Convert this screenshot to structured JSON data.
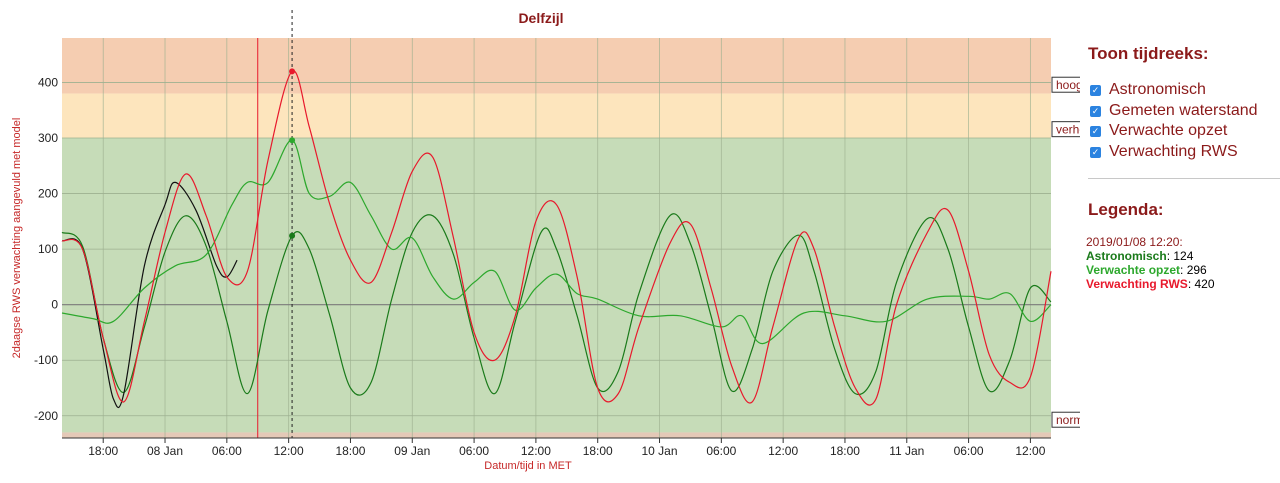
{
  "chart_data": {
    "type": "line",
    "title": "Delfzijl",
    "xlabel": "Datum/tijd in MET",
    "ylabel": "2daagse RWS verwachting aangevuld met model",
    "ylim": [
      -240,
      480
    ],
    "yticks": [
      400,
      300,
      200,
      100,
      0,
      -100,
      -200
    ],
    "xrange": [
      "2019-01-07 14:00",
      "2019-01-11 14:00"
    ],
    "xticks": [
      {
        "t": "2019-01-07 18:00",
        "label": "18:00"
      },
      {
        "t": "2019-01-08 00:00",
        "label": "08 Jan"
      },
      {
        "t": "2019-01-08 06:00",
        "label": "06:00"
      },
      {
        "t": "2019-01-08 12:00",
        "label": "12:00"
      },
      {
        "t": "2019-01-08 18:00",
        "label": "18:00"
      },
      {
        "t": "2019-01-09 00:00",
        "label": "09 Jan"
      },
      {
        "t": "2019-01-09 06:00",
        "label": "06:00"
      },
      {
        "t": "2019-01-09 12:00",
        "label": "12:00"
      },
      {
        "t": "2019-01-09 18:00",
        "label": "18:00"
      },
      {
        "t": "2019-01-10 00:00",
        "label": "10 Jan"
      },
      {
        "t": "2019-01-10 06:00",
        "label": "06:00"
      },
      {
        "t": "2019-01-10 12:00",
        "label": "12:00"
      },
      {
        "t": "2019-01-10 18:00",
        "label": "18:00"
      },
      {
        "t": "2019-01-11 00:00",
        "label": "11 Jan"
      },
      {
        "t": "2019-01-11 06:00",
        "label": "06:00"
      },
      {
        "t": "2019-01-11 12:00",
        "label": "12:00"
      }
    ],
    "bands": [
      {
        "from": 380,
        "to": 480,
        "color": "#f5cdb1"
      },
      {
        "from": 300,
        "to": 380,
        "color": "#fde5bd"
      },
      {
        "from": -230,
        "to": 300,
        "color": "#c6dcb8"
      },
      {
        "from": -240,
        "to": -230,
        "color": "#e4c9b7"
      }
    ],
    "level_labels": [
      {
        "text": "hoog",
        "value": 395
      },
      {
        "text": "verhoogd",
        "value": 315
      },
      {
        "text": "normaal",
        "value": -208
      }
    ],
    "now_marker": "2019-01-08 09:00",
    "cursor": "2019-01-08 12:20",
    "series": [
      {
        "name": "Astronomisch",
        "color": "#1a7a1a",
        "x": [
          "2019-01-07 14:00",
          "2019-01-07 16:00",
          "2019-01-07 18:00",
          "2019-01-07 20:00",
          "2019-01-07 22:00",
          "2019-01-08 00:00",
          "2019-01-08 02:00",
          "2019-01-08 04:00",
          "2019-01-08 06:00",
          "2019-01-08 08:00",
          "2019-01-08 10:00",
          "2019-01-08 12:20",
          "2019-01-08 14:00",
          "2019-01-08 16:00",
          "2019-01-08 18:00",
          "2019-01-08 20:00",
          "2019-01-08 22:00",
          "2019-01-09 00:00",
          "2019-01-09 02:00",
          "2019-01-09 04:00",
          "2019-01-09 06:00",
          "2019-01-09 08:00",
          "2019-01-09 10:00",
          "2019-01-09 12:30",
          "2019-01-09 14:00",
          "2019-01-09 16:00",
          "2019-01-09 18:00",
          "2019-01-09 20:00",
          "2019-01-09 22:00",
          "2019-01-10 01:00",
          "2019-01-10 03:00",
          "2019-01-10 05:00",
          "2019-01-10 07:00",
          "2019-01-10 09:00",
          "2019-01-10 11:00",
          "2019-01-10 13:30",
          "2019-01-10 15:00",
          "2019-01-10 17:00",
          "2019-01-10 19:00",
          "2019-01-10 21:00",
          "2019-01-10 23:00",
          "2019-01-11 02:00",
          "2019-01-11 04:00",
          "2019-01-11 06:00",
          "2019-01-11 08:00",
          "2019-01-11 10:00",
          "2019-01-11 12:00",
          "2019-01-11 14:00"
        ],
        "values": [
          130,
          105,
          -60,
          -158,
          -40,
          95,
          160,
          105,
          -30,
          -160,
          -10,
          124,
          100,
          -20,
          -150,
          -140,
          10,
          130,
          160,
          90,
          -60,
          -160,
          -30,
          130,
          100,
          -20,
          -150,
          -120,
          20,
          160,
          110,
          -20,
          -155,
          -80,
          60,
          125,
          60,
          -80,
          -160,
          -120,
          40,
          155,
          100,
          -40,
          -155,
          -100,
          30,
          5
        ]
      },
      {
        "name": "Gemeten waterstand",
        "color": "#111111",
        "x": [
          "2019-01-07 14:00",
          "2019-01-07 16:00",
          "2019-01-07 18:00",
          "2019-01-07 19:00",
          "2019-01-07 20:00",
          "2019-01-07 22:00",
          "2019-01-08 00:00",
          "2019-01-08 01:00",
          "2019-01-08 03:00",
          "2019-01-08 05:00",
          "2019-01-08 06:00",
          "2019-01-08 07:00"
        ],
        "values": [
          115,
          100,
          -80,
          -170,
          -160,
          70,
          180,
          220,
          170,
          70,
          50,
          80
        ]
      },
      {
        "name": "Verwachte opzet",
        "color": "#2da82d",
        "x": [
          "2019-01-07 14:00",
          "2019-01-07 17:00",
          "2019-01-07 19:00",
          "2019-01-07 22:00",
          "2019-01-08 01:00",
          "2019-01-08 04:00",
          "2019-01-08 06:30",
          "2019-01-08 08:00",
          "2019-01-08 10:00",
          "2019-01-08 12:20",
          "2019-01-08 14:00",
          "2019-01-08 16:00",
          "2019-01-08 18:00",
          "2019-01-08 20:00",
          "2019-01-08 22:00",
          "2019-01-09 00:00",
          "2019-01-09 02:00",
          "2019-01-09 04:00",
          "2019-01-09 06:00",
          "2019-01-09 08:00",
          "2019-01-09 10:00",
          "2019-01-09 12:00",
          "2019-01-09 14:00",
          "2019-01-09 16:00",
          "2019-01-09 18:00",
          "2019-01-09 22:00",
          "2019-01-10 02:00",
          "2019-01-10 06:00",
          "2019-01-10 08:00",
          "2019-01-10 10:00",
          "2019-01-10 14:00",
          "2019-01-10 18:00",
          "2019-01-10 22:00",
          "2019-01-11 02:00",
          "2019-01-11 06:00",
          "2019-01-11 08:00",
          "2019-01-11 10:00",
          "2019-01-11 12:00",
          "2019-01-11 14:00"
        ],
        "values": [
          -15,
          -25,
          -30,
          30,
          70,
          90,
          180,
          220,
          220,
          296,
          200,
          195,
          220,
          160,
          100,
          120,
          50,
          10,
          40,
          60,
          -10,
          30,
          55,
          20,
          10,
          -20,
          -20,
          -40,
          -20,
          -70,
          -15,
          -20,
          -30,
          10,
          15,
          10,
          20,
          -30,
          0
        ]
      },
      {
        "name": "Verwachting RWS",
        "color": "#e8192c",
        "x": [
          "2019-01-07 14:00",
          "2019-01-07 16:00",
          "2019-01-07 18:00",
          "2019-01-07 20:00",
          "2019-01-07 22:00",
          "2019-01-08 00:00",
          "2019-01-08 02:00",
          "2019-01-08 04:00",
          "2019-01-08 06:00",
          "2019-01-08 08:00",
          "2019-01-08 10:00",
          "2019-01-08 12:20",
          "2019-01-08 14:00",
          "2019-01-08 16:00",
          "2019-01-08 18:00",
          "2019-01-08 20:00",
          "2019-01-08 22:00",
          "2019-01-09 00:00",
          "2019-01-09 02:00",
          "2019-01-09 04:00",
          "2019-01-09 06:00",
          "2019-01-09 08:00",
          "2019-01-09 10:00",
          "2019-01-09 12:00",
          "2019-01-09 14:00",
          "2019-01-09 16:00",
          "2019-01-09 18:00",
          "2019-01-09 20:00",
          "2019-01-09 22:00",
          "2019-01-10 01:00",
          "2019-01-10 03:00",
          "2019-01-10 05:00",
          "2019-01-10 07:00",
          "2019-01-10 09:00",
          "2019-01-10 11:00",
          "2019-01-10 13:30",
          "2019-01-10 15:00",
          "2019-01-10 17:00",
          "2019-01-10 19:00",
          "2019-01-10 21:00",
          "2019-01-10 23:00",
          "2019-01-11 02:00",
          "2019-01-11 04:00",
          "2019-01-11 06:00",
          "2019-01-11 08:00",
          "2019-01-11 10:00",
          "2019-01-11 12:00",
          "2019-01-11 14:00"
        ],
        "values": [
          115,
          100,
          -60,
          -175,
          -30,
          130,
          235,
          160,
          50,
          60,
          260,
          420,
          320,
          180,
          80,
          40,
          130,
          240,
          265,
          120,
          -50,
          -100,
          -20,
          150,
          180,
          50,
          -150,
          -160,
          -40,
          110,
          145,
          30,
          -110,
          -175,
          -40,
          120,
          100,
          -40,
          -150,
          -170,
          0,
          130,
          170,
          60,
          -90,
          -140,
          -130,
          60
        ]
      }
    ]
  },
  "sidebar": {
    "toon_title": "Toon tijdreeks:",
    "checkboxes": [
      {
        "label": "Astronomisch",
        "checked": true
      },
      {
        "label": "Gemeten waterstand",
        "checked": true
      },
      {
        "label": "Verwachte opzet",
        "checked": true
      },
      {
        "label": "Verwachting RWS",
        "checked": true
      }
    ],
    "legend_title": "Legenda:",
    "legend_date": "2019/01/08 12:20:",
    "legend_items": [
      {
        "name": "Astronomisch",
        "value": "124",
        "color": "#1a7a1a"
      },
      {
        "name": "Verwachte opzet",
        "value": "296",
        "color": "#2da82d"
      },
      {
        "name": "Verwachting RWS",
        "value": "420",
        "color": "#e8192c"
      }
    ]
  }
}
